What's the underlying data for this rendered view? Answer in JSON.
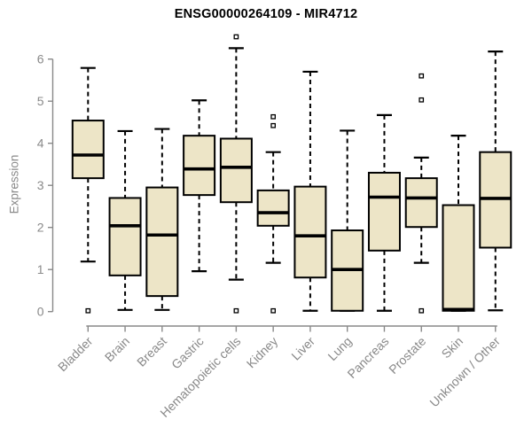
{
  "chart_data": {
    "type": "boxplot",
    "title": "ENSG00000264109 - MIR4712",
    "ylabel": "Expression",
    "xlabel": "",
    "ylim": [
      0,
      6.6
    ],
    "yticks": [
      0,
      1,
      2,
      3,
      4,
      5,
      6
    ],
    "grid": false,
    "legend": "none",
    "boxes": [
      {
        "category": "Bladder",
        "whisker_low": 1.19,
        "q1": 3.17,
        "median": 3.72,
        "q3": 4.54,
        "whisker_high": 5.79,
        "outliers": [
          0.02
        ]
      },
      {
        "category": "Brain",
        "whisker_low": 0.04,
        "q1": 0.86,
        "median": 2.04,
        "q3": 2.7,
        "whisker_high": 4.29,
        "outliers": []
      },
      {
        "category": "Breast",
        "whisker_low": 0.04,
        "q1": 0.37,
        "median": 1.82,
        "q3": 2.95,
        "whisker_high": 4.34,
        "outliers": []
      },
      {
        "category": "Gastric",
        "whisker_low": 0.96,
        "q1": 2.77,
        "median": 3.39,
        "q3": 4.18,
        "whisker_high": 5.02,
        "outliers": []
      },
      {
        "category": "Hematopoietic cells",
        "whisker_low": 0.76,
        "q1": 2.6,
        "median": 3.43,
        "q3": 4.11,
        "whisker_high": 6.26,
        "outliers": [
          6.53,
          0.02
        ]
      },
      {
        "category": "Kidney",
        "whisker_low": 1.16,
        "q1": 2.04,
        "median": 2.35,
        "q3": 2.88,
        "whisker_high": 3.79,
        "outliers": [
          4.63,
          4.42,
          0.02
        ]
      },
      {
        "category": "Liver",
        "whisker_low": 0.02,
        "q1": 0.81,
        "median": 1.8,
        "q3": 2.97,
        "whisker_high": 5.7,
        "outliers": []
      },
      {
        "category": "Lung",
        "whisker_low": 0.02,
        "q1": 0.02,
        "median": 1.0,
        "q3": 1.93,
        "whisker_high": 4.3,
        "outliers": []
      },
      {
        "category": "Pancreas",
        "whisker_low": 0.02,
        "q1": 1.45,
        "median": 2.72,
        "q3": 3.3,
        "whisker_high": 4.67,
        "outliers": []
      },
      {
        "category": "Prostate",
        "whisker_low": 1.16,
        "q1": 2.01,
        "median": 2.7,
        "q3": 3.17,
        "whisker_high": 3.66,
        "outliers": [
          5.6,
          5.03,
          0.02
        ]
      },
      {
        "category": "Skin",
        "whisker_low": 0.02,
        "q1": 0.02,
        "median": 0.05,
        "q3": 2.53,
        "whisker_high": 4.18,
        "outliers": []
      },
      {
        "category": "Unknown / Other",
        "whisker_low": 0.03,
        "q1": 1.52,
        "median": 2.69,
        "q3": 3.79,
        "whisker_high": 6.18,
        "outliers": []
      }
    ],
    "colors": {
      "box_fill": "#EDE5C7",
      "box_border": "#000000",
      "median": "#000000",
      "whisker": "#000000",
      "outlier_fill": "#ffffff",
      "axis": "#898989",
      "tick_label": "#898989",
      "title": "#000000"
    }
  }
}
